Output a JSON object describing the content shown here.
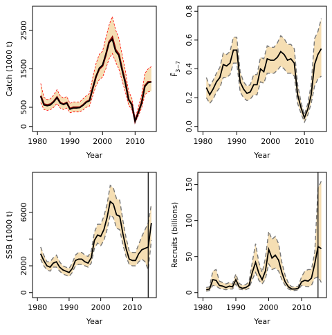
{
  "figure": {
    "xlabel": "Year"
  },
  "chart_data": [
    {
      "id": "catch",
      "type": "line",
      "ylabel": "Catch (1000 t)",
      "xlim": [
        1980,
        2015
      ],
      "ylim": [
        0,
        3000
      ],
      "xticks": [
        1980,
        1990,
        2000,
        2010
      ],
      "yticks": [
        0,
        500,
        1500,
        2500
      ],
      "x": [
        1981,
        1982,
        1983,
        1984,
        1985,
        1986,
        1987,
        1988,
        1989,
        1990,
        1991,
        1992,
        1993,
        1994,
        1995,
        1996,
        1997,
        1998,
        1999,
        2000,
        2001,
        2002,
        2003,
        2004,
        2005,
        2006,
        2007,
        2008,
        2009,
        2010,
        2011,
        2012,
        2013,
        2014,
        2015
      ],
      "series": [
        {
          "role": "observed",
          "color": "#8b0000",
          "values": [
            800,
            580,
            560,
            580,
            650,
            760,
            620,
            580,
            620,
            460,
            500,
            500,
            500,
            560,
            640,
            680,
            1000,
            1300,
            1500,
            1580,
            1860,
            2200,
            2320,
            2000,
            1880,
            1500,
            1160,
            700,
            580,
            140,
            370,
            620,
            1060,
            1160,
            1160
          ]
        },
        {
          "role": "estimate",
          "color": "#000000",
          "values": [
            780,
            560,
            540,
            560,
            640,
            750,
            610,
            570,
            610,
            450,
            480,
            480,
            490,
            550,
            630,
            670,
            990,
            1300,
            1520,
            1600,
            1880,
            2180,
            2270,
            1960,
            1850,
            1460,
            1120,
            700,
            560,
            140,
            360,
            600,
            1040,
            1140,
            1160
          ]
        },
        {
          "role": "ci-upper",
          "color": "#ff0000",
          "values": [
            1120,
            760,
            700,
            720,
            820,
            960,
            800,
            740,
            780,
            600,
            640,
            640,
            640,
            720,
            800,
            860,
            1280,
            1640,
            1880,
            1960,
            2300,
            2640,
            2860,
            2520,
            2300,
            1880,
            1460,
            920,
            740,
            200,
            500,
            820,
            1380,
            1500,
            1560
          ]
        },
        {
          "role": "ci-lower",
          "color": "#ff0000",
          "values": [
            620,
            440,
            420,
            440,
            500,
            600,
            480,
            440,
            480,
            360,
            380,
            380,
            380,
            430,
            500,
            530,
            800,
            1060,
            1220,
            1280,
            1500,
            1760,
            1900,
            1680,
            1500,
            1200,
            900,
            560,
            440,
            100,
            280,
            480,
            820,
            900,
            920
          ]
        }
      ]
    },
    {
      "id": "fbar",
      "type": "line",
      "ylabel": "F̄3−7",
      "xlim": [
        1980,
        2015
      ],
      "ylim": [
        0,
        0.8
      ],
      "xticks": [
        1980,
        1990,
        2000,
        2010
      ],
      "yticks": [
        0.0,
        0.2,
        0.4,
        0.6,
        0.8
      ],
      "ytick_labels": [
        "0.0",
        "0.2",
        "0.4",
        "0.6",
        "0.8"
      ],
      "x": [
        1981,
        1982,
        1983,
        1984,
        1985,
        1986,
        1987,
        1988,
        1989,
        1990,
        1991,
        1992,
        1993,
        1994,
        1995,
        1996,
        1997,
        1998,
        1999,
        2000,
        2001,
        2002,
        2003,
        2004,
        2005,
        2006,
        2007,
        2008,
        2009,
        2010,
        2011,
        2012,
        2013,
        2014,
        2015
      ],
      "series": [
        {
          "role": "estimate",
          "color": "#000000",
          "values": [
            0.27,
            0.22,
            0.26,
            0.31,
            0.34,
            0.43,
            0.42,
            0.44,
            0.53,
            0.53,
            0.31,
            0.26,
            0.23,
            0.24,
            0.29,
            0.29,
            0.4,
            0.38,
            0.47,
            0.46,
            0.46,
            0.48,
            0.52,
            0.5,
            0.46,
            0.47,
            0.44,
            0.22,
            0.13,
            0.06,
            0.12,
            0.22,
            0.43,
            0.5,
            0.54
          ]
        },
        {
          "role": "ci-upper",
          "color": "#777777",
          "values": [
            0.34,
            0.28,
            0.32,
            0.37,
            0.41,
            0.51,
            0.5,
            0.52,
            0.62,
            0.62,
            0.38,
            0.31,
            0.28,
            0.29,
            0.36,
            0.36,
            0.48,
            0.47,
            0.56,
            0.55,
            0.55,
            0.58,
            0.63,
            0.61,
            0.57,
            0.57,
            0.54,
            0.29,
            0.17,
            0.08,
            0.16,
            0.29,
            0.61,
            0.66,
            0.75
          ]
        },
        {
          "role": "ci-lower",
          "color": "#777777",
          "values": [
            0.2,
            0.16,
            0.19,
            0.24,
            0.27,
            0.34,
            0.34,
            0.36,
            0.44,
            0.44,
            0.24,
            0.2,
            0.18,
            0.19,
            0.22,
            0.22,
            0.31,
            0.3,
            0.37,
            0.37,
            0.37,
            0.39,
            0.42,
            0.4,
            0.37,
            0.37,
            0.35,
            0.16,
            0.09,
            0.03,
            0.08,
            0.16,
            0.28,
            0.33,
            0.35
          ]
        }
      ]
    },
    {
      "id": "ssb",
      "type": "line",
      "ylabel": "SSB (1000 t)",
      "xlim": [
        1980,
        2016
      ],
      "ylim": [
        0,
        8600
      ],
      "xticks": [
        1980,
        1990,
        2000,
        2010
      ],
      "yticks": [
        0,
        2000,
        4000,
        6000
      ],
      "ytick_labels": [
        "0",
        "2000",
        "",
        "6000"
      ],
      "vline": 2015,
      "x": [
        1981,
        1982,
        1983,
        1984,
        1985,
        1986,
        1987,
        1988,
        1989,
        1990,
        1991,
        1992,
        1993,
        1994,
        1995,
        1996,
        1997,
        1998,
        1999,
        2000,
        2001,
        2002,
        2003,
        2004,
        2005,
        2006,
        2007,
        2008,
        2009,
        2010,
        2011,
        2012,
        2013,
        2014,
        2015,
        2016
      ],
      "series": [
        {
          "role": "estimate",
          "color": "#000000",
          "values": [
            2900,
            2400,
            2000,
            1900,
            2200,
            2300,
            1900,
            1700,
            1600,
            1500,
            1800,
            2400,
            2500,
            2500,
            2300,
            2200,
            2600,
            3900,
            4300,
            4200,
            4700,
            5600,
            6800,
            6600,
            5800,
            5700,
            4400,
            3300,
            2500,
            2400,
            2400,
            2900,
            3200,
            3300,
            3400,
            5200
          ]
        },
        {
          "role": "ci-upper",
          "color": "#777777",
          "values": [
            3400,
            2800,
            2300,
            2300,
            2600,
            2800,
            2300,
            2000,
            1900,
            1800,
            2200,
            2800,
            3000,
            3000,
            2800,
            2700,
            3100,
            4500,
            5100,
            5100,
            5700,
            6600,
            8000,
            7800,
            7000,
            6900,
            5400,
            4100,
            3100,
            3000,
            3000,
            3600,
            4200,
            4700,
            5200,
            6600
          ]
        },
        {
          "role": "ci-lower",
          "color": "#777777",
          "values": [
            2500,
            2000,
            1700,
            1600,
            1900,
            1900,
            1600,
            1400,
            1300,
            1200,
            1500,
            2000,
            2100,
            2100,
            2000,
            1900,
            2200,
            3300,
            3700,
            3500,
            3900,
            4700,
            5800,
            5600,
            4800,
            4700,
            3600,
            2700,
            2100,
            2000,
            2000,
            2300,
            2500,
            2300,
            1700,
            3900
          ]
        }
      ],
      "ci_band_upper_extra": [
        [
          2016,
          8000
        ]
      ]
    },
    {
      "id": "recruits",
      "type": "line",
      "ylabel": "Recruits (billions)",
      "xlim": [
        1980,
        2016
      ],
      "ylim": [
        0,
        160
      ],
      "xticks": [
        1980,
        1990,
        2000,
        2010
      ],
      "yticks": [
        0,
        50,
        100,
        150
      ],
      "vline": 2015,
      "x": [
        1981,
        1982,
        1983,
        1984,
        1985,
        1986,
        1987,
        1988,
        1989,
        1990,
        1991,
        1992,
        1993,
        1994,
        1995,
        1996,
        1997,
        1998,
        1999,
        2000,
        2001,
        2002,
        2003,
        2004,
        2005,
        2006,
        2007,
        2008,
        2009,
        2010,
        2011,
        2012,
        2013,
        2014,
        2015,
        2016
      ],
      "series": [
        {
          "role": "estimate",
          "color": "#000000",
          "values": [
            4,
            5,
            18,
            17,
            10,
            9,
            7,
            9,
            8,
            18,
            8,
            6,
            7,
            10,
            28,
            42,
            27,
            18,
            30,
            60,
            48,
            52,
            45,
            28,
            15,
            8,
            5,
            5,
            6,
            15,
            17,
            16,
            20,
            40,
            64,
            61
          ]
        },
        {
          "role": "ci-upper",
          "color": "#777777",
          "values": [
            7,
            8,
            30,
            32,
            16,
            14,
            12,
            14,
            12,
            26,
            13,
            10,
            11,
            15,
            42,
            68,
            42,
            28,
            48,
            85,
            74,
            78,
            68,
            42,
            24,
            13,
            8,
            8,
            9,
            22,
            30,
            32,
            32,
            56,
            145,
            155
          ]
        },
        {
          "role": "ci-lower",
          "color": "#777777",
          "values": [
            2,
            3,
            10,
            9,
            6,
            5,
            4,
            5,
            5,
            12,
            5,
            4,
            4,
            6,
            18,
            28,
            17,
            12,
            19,
            40,
            32,
            34,
            30,
            18,
            10,
            5,
            3,
            3,
            4,
            10,
            9,
            8,
            10,
            20,
            22,
            14
          ]
        }
      ]
    }
  ]
}
